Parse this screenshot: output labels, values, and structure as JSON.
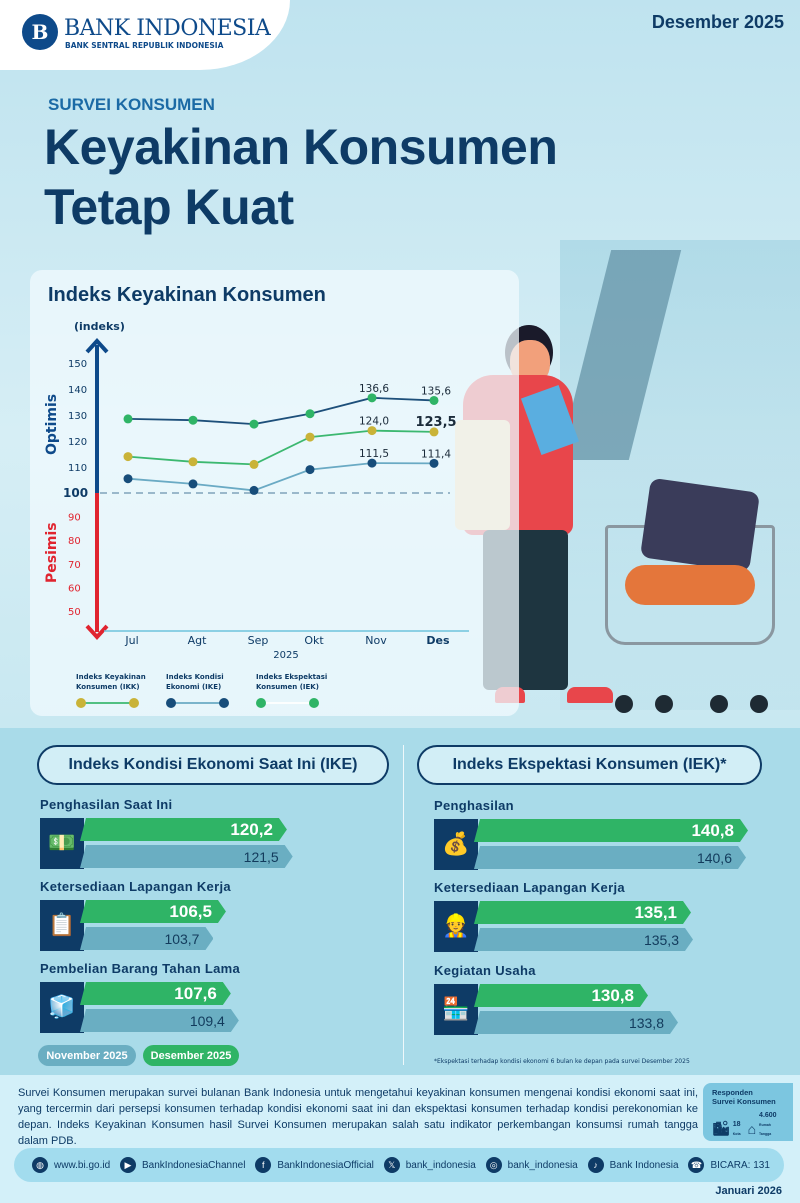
{
  "header": {
    "logo_mark": "B",
    "logo_name": "BANK INDONESIA",
    "logo_sub": "BANK SENTRAL REPUBLIK INDONESIA",
    "period": "Desember 2025"
  },
  "hero": {
    "kicker": "SURVEI KONSUMEN",
    "title_line1": "Keyakinan Konsumen",
    "title_line2": "Tetap Kuat"
  },
  "chart_data": {
    "type": "line",
    "title": "Indeks Keyakinan Konsumen",
    "ylabel": "(indeks)",
    "upper_axis_label": "Optimis",
    "lower_axis_label": "Pesimis",
    "xlabel": "2025",
    "categories": [
      "Jul",
      "Agt",
      "Sep",
      "Okt",
      "Nov",
      "Des"
    ],
    "yticks": [
      50,
      60,
      70,
      80,
      90,
      100,
      110,
      120,
      130,
      140,
      150
    ],
    "reference_line": 100,
    "ylim": [
      40,
      155
    ],
    "legend_placement": "bottom",
    "series": [
      {
        "name": "Indeks Ekspektasi Konsumen (IEK)",
        "dot_color": "#2fb466",
        "line_color": "#1d4f7a",
        "values": [
          128.5,
          128.0,
          126.5,
          130.5,
          136.6,
          135.6
        ],
        "labels": [
          "",
          "",
          "",
          "",
          "136,6",
          "135,6"
        ]
      },
      {
        "name": "Indeks Keyakinan Konsumen (IKK)",
        "dot_color": "#c9b338",
        "line_color": "#3cb870",
        "values": [
          114.0,
          112.0,
          111.0,
          121.5,
          124.0,
          123.5
        ],
        "labels": [
          "",
          "",
          "",
          "",
          "124,0",
          "123,5"
        ]
      },
      {
        "name": "Indeks Kondisi Ekonomi (IKE)",
        "dot_color": "#174d7a",
        "line_color": "#6aaac4",
        "values": [
          105.5,
          103.5,
          101.0,
          109.0,
          111.5,
          111.4
        ],
        "labels": [
          "",
          "",
          "",
          "",
          "111,5",
          "111,4"
        ]
      }
    ],
    "legend": [
      {
        "line1": "Indeks Keyakinan",
        "line2": "Konsumen (IKK)",
        "dot": "#c9b338",
        "line": "#3cb870"
      },
      {
        "line1": "Indeks Kondisi",
        "line2": "Ekonomi (IKE)",
        "dot": "#174d7a",
        "line": "#6aaac4"
      },
      {
        "line1": "Indeks Ekspektasi",
        "line2": "Konsumen (IEK)",
        "dot": "#2fb466",
        "line": "#ffffff"
      }
    ]
  },
  "ike": {
    "title": "Indeks Kondisi Ekonomi Saat Ini (IKE)",
    "items": [
      {
        "label": "Penghasilan Saat Ini",
        "icon": "money-hand-icon",
        "dec": 120.2,
        "dec_text": "120,2",
        "nov": 121.5,
        "nov_text": "121,5"
      },
      {
        "label": "Ketersediaan Lapangan Kerja",
        "icon": "job-document-icon",
        "dec": 106.5,
        "dec_text": "106,5",
        "nov": 103.7,
        "nov_text": "103,7"
      },
      {
        "label": "Pembelian Barang Tahan Lama",
        "icon": "refrigerator-icon",
        "dec": 107.6,
        "dec_text": "107,6",
        "nov": 109.4,
        "nov_text": "109,4"
      }
    ]
  },
  "iek": {
    "title": "Indeks Ekspektasi Konsumen (IEK)*",
    "items": [
      {
        "label": "Penghasilan",
        "icon": "money-bag-hand-icon",
        "dec": 140.8,
        "dec_text": "140,8",
        "nov": 140.6,
        "nov_text": "140,6"
      },
      {
        "label": "Ketersediaan Lapangan Kerja",
        "icon": "worker-hands-icon",
        "dec": 135.1,
        "dec_text": "135,1",
        "nov": 135.3,
        "nov_text": "135,3"
      },
      {
        "label": "Kegiatan Usaha",
        "icon": "shop-icon",
        "dec": 130.8,
        "dec_text": "130,8",
        "nov": 133.8,
        "nov_text": "133,8"
      }
    ],
    "footnote": "*Ekspektasi terhadap kondisi ekonomi 6 bulan ke depan pada survei Desember 2025"
  },
  "bar_legend": {
    "nov": "November 2025",
    "dec": "Desember 2025",
    "nov_color": "#6aaec2",
    "dec_color": "#2fb466"
  },
  "footer": {
    "description": "Survei Konsumen merupakan survei bulanan Bank Indonesia untuk mengetahui keyakinan konsumen mengenai kondisi ekonomi saat ini, yang tercermin dari persepsi konsumen terhadap kondisi ekonomi saat ini dan ekspektasi konsumen terhadap kondisi perekonomian ke depan. Indeks Keyakinan Konsumen hasil Survei Konsumen merupakan salah satu indikator perkembangan konsumsi rumah tangga dalam PDB.",
    "respondents": {
      "title_line1": "Responden",
      "title_line2": "Survei Konsumen",
      "cities": "18",
      "cities_unit": "Kota",
      "households": "4.600",
      "households_unit": "Rumah Tangga"
    },
    "social": [
      {
        "icon": "globe-icon",
        "glyph": "◍",
        "label": "www.bi.go.id"
      },
      {
        "icon": "youtube-icon",
        "glyph": "▶",
        "label": "BankIndonesiaChannel"
      },
      {
        "icon": "facebook-icon",
        "glyph": "f",
        "label": "BankIndonesiaOfficial"
      },
      {
        "icon": "x-icon",
        "glyph": "𝕏",
        "label": "bank_indonesia"
      },
      {
        "icon": "instagram-icon",
        "glyph": "◎",
        "label": "bank_indonesia"
      },
      {
        "icon": "tiktok-icon",
        "glyph": "♪",
        "label": "Bank Indonesia"
      },
      {
        "icon": "bicara-icon",
        "glyph": "☎",
        "label": "BICARA: 131"
      }
    ],
    "issued": "Januari 2026"
  }
}
